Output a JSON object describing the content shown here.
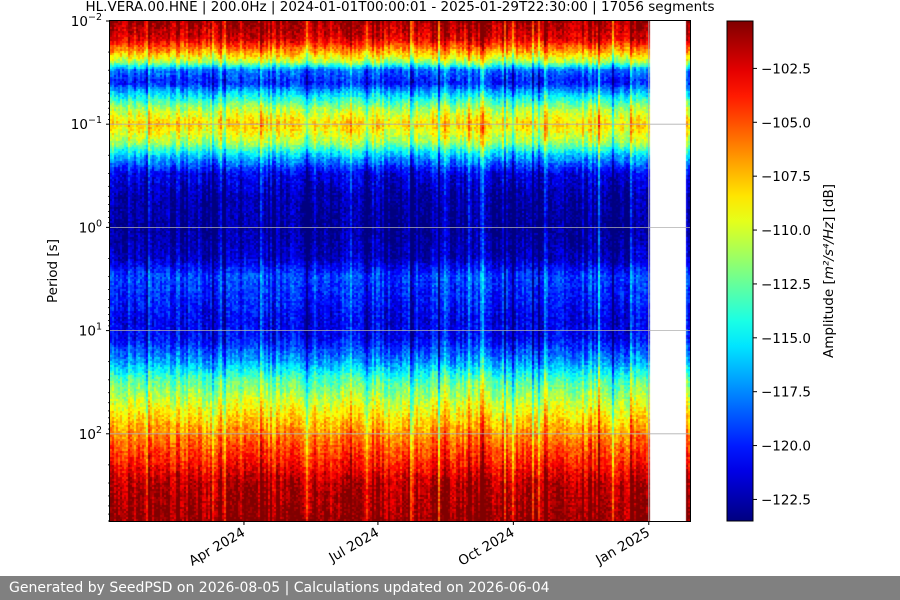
{
  "footer": "Generated by SeedPSD on 2026-08-05 | Calculations updated on 2026-06-04",
  "chart_data": {
    "type": "heatmap",
    "title": "HL.VERA.00.HNE | 200.0Hz | 2024-01-01T00:00:01 - 2025-01-29T22:30:00 | 17056 segments",
    "ylabel": "Period [s]",
    "yscale": "log",
    "yinverted": true,
    "ylim": [
      0.01,
      700
    ],
    "y_ticks": [
      {
        "value": 0.01,
        "base": "10",
        "exp": "−2"
      },
      {
        "value": 0.1,
        "base": "10",
        "exp": "−1"
      },
      {
        "value": 1,
        "base": "10",
        "exp": "0"
      },
      {
        "value": 10,
        "base": "10",
        "exp": "1"
      },
      {
        "value": 100,
        "base": "10",
        "exp": "2"
      }
    ],
    "y_grid": [
      0.1,
      1,
      10,
      100
    ],
    "xlim": [
      "2024-01-01",
      "2025-01-29"
    ],
    "x_ticks": [
      {
        "date": "2024-04-01",
        "label": "Apr 2024"
      },
      {
        "date": "2024-07-01",
        "label": "Jul 2024"
      },
      {
        "date": "2024-10-01",
        "label": "Oct 2024"
      },
      {
        "date": "2025-01-01",
        "label": "Jan 2025"
      }
    ],
    "x_grid": [
      "2025-01-01"
    ],
    "data_gaps": [
      [
        "2025-01-01",
        "2025-01-26"
      ]
    ],
    "colormap": "jet",
    "colorbar": {
      "label_text": "Amplitude [",
      "label_units": "m²/s⁴/Hz",
      "label_suffix": "] [dB]",
      "range": [
        -123.5,
        -100.3
      ],
      "ticks": [
        -102.5,
        -105.0,
        -107.5,
        -110.0,
        -112.5,
        -115.0,
        -117.5,
        -120.0,
        -122.5
      ],
      "tick_labels": [
        "−102.5",
        "−105.0",
        "−107.5",
        "−110.0",
        "−112.5",
        "−115.0",
        "−117.5",
        "−120.0",
        "−122.5"
      ]
    },
    "mean_profile": {
      "period_s": [
        0.01,
        0.015,
        0.02,
        0.025,
        0.03,
        0.04,
        0.05,
        0.07,
        0.1,
        0.15,
        0.2,
        0.3,
        0.5,
        1,
        2,
        3,
        5,
        8,
        12,
        20,
        30,
        50,
        80,
        120,
        200,
        300,
        700
      ],
      "amplitude_db": [
        -101,
        -102.5,
        -107,
        -111,
        -118,
        -120,
        -116,
        -111,
        -108,
        -111,
        -116,
        -121,
        -122.5,
        -123,
        -122,
        -119,
        -120,
        -121,
        -120.5,
        -117,
        -113,
        -110,
        -107.5,
        -105.5,
        -103.5,
        -101.5,
        -100.5
      ]
    }
  }
}
